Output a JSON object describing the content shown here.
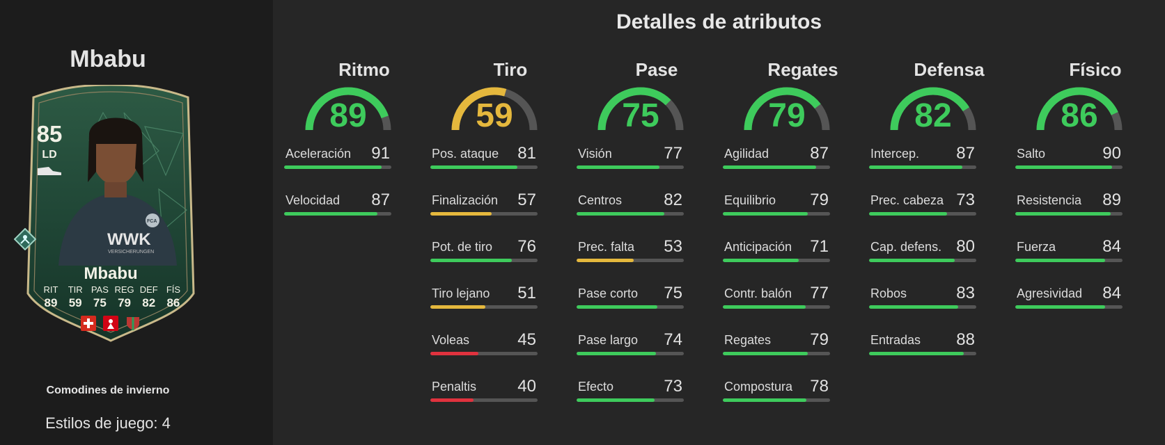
{
  "player": {
    "name": "Mbabu",
    "card_rating": "85",
    "card_position": "LD",
    "card_stats": [
      {
        "label": "RIT",
        "value": "89"
      },
      {
        "label": "TIR",
        "value": "59"
      },
      {
        "label": "PAS",
        "value": "75"
      },
      {
        "label": "REG",
        "value": "79"
      },
      {
        "label": "DEF",
        "value": "82"
      },
      {
        "label": "FÍS",
        "value": "86"
      }
    ],
    "card_jersey_text": "WWK",
    "card_jersey_subtext": "VERSICHERUNGEN",
    "card_club_badge_text": "FCA",
    "card_league_badge_text": "BUNDESLIGA",
    "version_name": "Comodines de invierno",
    "playstyles": "Estilos de juego: 4"
  },
  "colors": {
    "green": "#3ecb5c",
    "yellow": "#e5b83d",
    "red": "#e0323e",
    "track": "#555555"
  },
  "section_title": "Detalles de atributos",
  "categories": [
    {
      "name": "Ritmo",
      "value": "89",
      "level": 0.89,
      "color": "green",
      "attributes": [
        {
          "name": "Aceleración",
          "value": "91",
          "level": 0.91,
          "color": "green"
        },
        {
          "name": "Velocidad",
          "value": "87",
          "level": 0.87,
          "color": "green"
        }
      ]
    },
    {
      "name": "Tiro",
      "value": "59",
      "level": 0.59,
      "color": "yellow",
      "attributes": [
        {
          "name": "Pos. ataque",
          "value": "81",
          "level": 0.81,
          "color": "green"
        },
        {
          "name": "Finalización",
          "value": "57",
          "level": 0.57,
          "color": "yellow"
        },
        {
          "name": "Pot. de tiro",
          "value": "76",
          "level": 0.76,
          "color": "green"
        },
        {
          "name": "Tiro lejano",
          "value": "51",
          "level": 0.51,
          "color": "yellow"
        },
        {
          "name": "Voleas",
          "value": "45",
          "level": 0.45,
          "color": "red"
        },
        {
          "name": "Penaltis",
          "value": "40",
          "level": 0.4,
          "color": "red"
        }
      ]
    },
    {
      "name": "Pase",
      "value": "75",
      "level": 0.75,
      "color": "green",
      "attributes": [
        {
          "name": "Visión",
          "value": "77",
          "level": 0.77,
          "color": "green"
        },
        {
          "name": "Centros",
          "value": "82",
          "level": 0.82,
          "color": "green"
        },
        {
          "name": "Prec. falta",
          "value": "53",
          "level": 0.53,
          "color": "yellow"
        },
        {
          "name": "Pase corto",
          "value": "75",
          "level": 0.75,
          "color": "green"
        },
        {
          "name": "Pase largo",
          "value": "74",
          "level": 0.74,
          "color": "green"
        },
        {
          "name": "Efecto",
          "value": "73",
          "level": 0.73,
          "color": "green"
        }
      ]
    },
    {
      "name": "Regates",
      "value": "79",
      "level": 0.79,
      "color": "green",
      "attributes": [
        {
          "name": "Agilidad",
          "value": "87",
          "level": 0.87,
          "color": "green"
        },
        {
          "name": "Equilibrio",
          "value": "79",
          "level": 0.79,
          "color": "green"
        },
        {
          "name": "Anticipación",
          "value": "71",
          "level": 0.71,
          "color": "green"
        },
        {
          "name": "Contr. balón",
          "value": "77",
          "level": 0.77,
          "color": "green"
        },
        {
          "name": "Regates",
          "value": "79",
          "level": 0.79,
          "color": "green"
        },
        {
          "name": "Compostura",
          "value": "78",
          "level": 0.78,
          "color": "green"
        }
      ]
    },
    {
      "name": "Defensa",
      "value": "82",
      "level": 0.82,
      "color": "green",
      "attributes": [
        {
          "name": "Intercep.",
          "value": "87",
          "level": 0.87,
          "color": "green"
        },
        {
          "name": "Prec. cabeza",
          "value": "73",
          "level": 0.73,
          "color": "green"
        },
        {
          "name": "Cap. defens.",
          "value": "80",
          "level": 0.8,
          "color": "green"
        },
        {
          "name": "Robos",
          "value": "83",
          "level": 0.83,
          "color": "green"
        },
        {
          "name": "Entradas",
          "value": "88",
          "level": 0.88,
          "color": "green"
        }
      ]
    },
    {
      "name": "Físico",
      "value": "86",
      "level": 0.86,
      "color": "green",
      "attributes": [
        {
          "name": "Salto",
          "value": "90",
          "level": 0.9,
          "color": "green"
        },
        {
          "name": "Resistencia",
          "value": "89",
          "level": 0.89,
          "color": "green"
        },
        {
          "name": "Fuerza",
          "value": "84",
          "level": 0.84,
          "color": "green"
        },
        {
          "name": "Agresividad",
          "value": "84",
          "level": 0.84,
          "color": "green"
        }
      ]
    }
  ]
}
